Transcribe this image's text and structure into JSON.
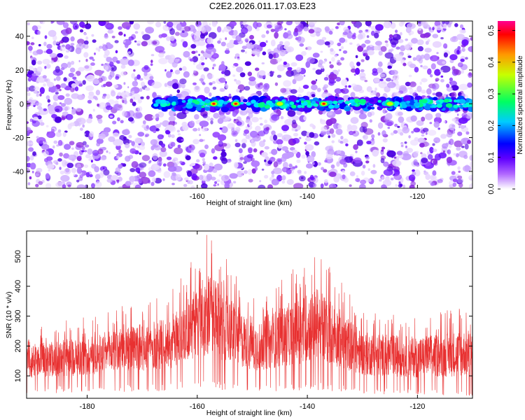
{
  "title": "C2E2.2026.011.17.03.E23",
  "chart_data": [
    {
      "type": "heatmap",
      "xlabel": "Height of straight line (km)",
      "ylabel": "Frequency (Hz)",
      "xlim": [
        -191,
        -110
      ],
      "ylim": [
        -50,
        49
      ],
      "xticks": [
        -180,
        -160,
        -140,
        -120
      ],
      "yticks": [
        -40,
        -20,
        0,
        20,
        40
      ],
      "colorbar": {
        "label": "Normalized spectral amplitude",
        "range": [
          0,
          0.53
        ],
        "ticks": [
          0,
          0.1,
          0.2,
          0.3,
          0.4,
          0.5
        ],
        "tick_labels": [
          "0.0",
          "0.1",
          "0.2",
          "0.3",
          "0.4",
          "0.5"
        ],
        "colors": [
          "#ffffff",
          "#8c00ff",
          "#0000ff",
          "#00c8ff",
          "#00ff64",
          "#c8ff00",
          "#ffaa00",
          "#ff0000",
          "#ff0090"
        ]
      },
      "signal_band": {
        "frequency_hz": 0,
        "x_range": [
          -168,
          -110
        ],
        "peak_regions": [
          {
            "x": -157,
            "amplitude": 0.45
          },
          {
            "x": -153,
            "amplitude": 0.38
          },
          {
            "x": -137,
            "amplitude": 0.42
          },
          {
            "x": -145,
            "amplitude": 0.3
          },
          {
            "x": -125,
            "amplitude": 0.28
          }
        ]
      }
    },
    {
      "type": "line",
      "xlabel": "Height of straight line (km)",
      "ylabel": "SNR (10 * v/v)",
      "xlim": [
        -191,
        -110
      ],
      "ylim": [
        25,
        585
      ],
      "xticks": [
        -180,
        -160,
        -140,
        -120
      ],
      "yticks": [
        100,
        200,
        300,
        400,
        500
      ],
      "series": [
        {
          "name": "SNR",
          "color": "#e83030",
          "envelope": [
            {
              "x": -191,
              "low": 60,
              "high": 260
            },
            {
              "x": -180,
              "low": 60,
              "high": 300
            },
            {
              "x": -165,
              "low": 70,
              "high": 380
            },
            {
              "x": -158,
              "low": 80,
              "high": 585
            },
            {
              "x": -150,
              "low": 60,
              "high": 360
            },
            {
              "x": -138,
              "low": 70,
              "high": 520
            },
            {
              "x": -130,
              "low": 55,
              "high": 320
            },
            {
              "x": -120,
              "low": 50,
              "high": 300
            },
            {
              "x": -110,
              "low": 45,
              "high": 340
            }
          ]
        }
      ]
    }
  ]
}
